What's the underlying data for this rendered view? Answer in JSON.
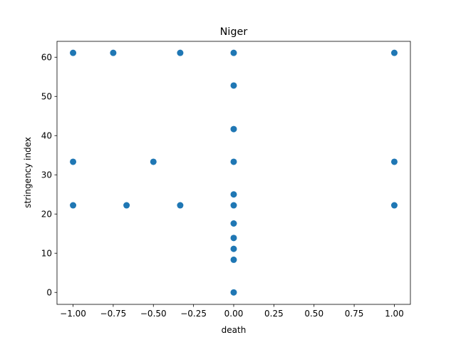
{
  "chart_data": {
    "type": "scatter",
    "title": "Niger",
    "xlabel": "death",
    "ylabel": "stringency index",
    "xlim": [
      -1.1,
      1.1
    ],
    "ylim": [
      -3.05,
      64.05
    ],
    "xticks": [
      -1.0,
      -0.75,
      -0.5,
      -0.25,
      0.0,
      0.25,
      0.5,
      0.75,
      1.0
    ],
    "xtick_labels": [
      "−1.00",
      "−0.75",
      "−0.50",
      "−0.25",
      "0.00",
      "0.25",
      "0.50",
      "0.75",
      "1.00"
    ],
    "yticks": [
      0,
      10,
      20,
      30,
      40,
      50,
      60
    ],
    "ytick_labels": [
      "0",
      "10",
      "20",
      "30",
      "40",
      "50",
      "60"
    ],
    "grid": false,
    "marker_color": "#1f77b4",
    "points": [
      {
        "x": -1.0,
        "y": 61.11
      },
      {
        "x": -0.75,
        "y": 61.11
      },
      {
        "x": -0.333,
        "y": 61.11
      },
      {
        "x": 0.0,
        "y": 61.11
      },
      {
        "x": 1.0,
        "y": 61.11
      },
      {
        "x": 0.0,
        "y": 52.78
      },
      {
        "x": 0.0,
        "y": 41.67
      },
      {
        "x": -1.0,
        "y": 33.33
      },
      {
        "x": -0.5,
        "y": 33.33
      },
      {
        "x": 0.0,
        "y": 33.33
      },
      {
        "x": 1.0,
        "y": 33.33
      },
      {
        "x": 0.0,
        "y": 25.0
      },
      {
        "x": -1.0,
        "y": 22.22
      },
      {
        "x": -0.667,
        "y": 22.22
      },
      {
        "x": -0.333,
        "y": 22.22
      },
      {
        "x": 0.0,
        "y": 22.22
      },
      {
        "x": 1.0,
        "y": 22.22
      },
      {
        "x": 0.0,
        "y": 17.59
      },
      {
        "x": 0.0,
        "y": 13.89
      },
      {
        "x": 0.0,
        "y": 11.11
      },
      {
        "x": 0.0,
        "y": 8.33
      },
      {
        "x": 0.0,
        "y": 0.0
      }
    ]
  }
}
